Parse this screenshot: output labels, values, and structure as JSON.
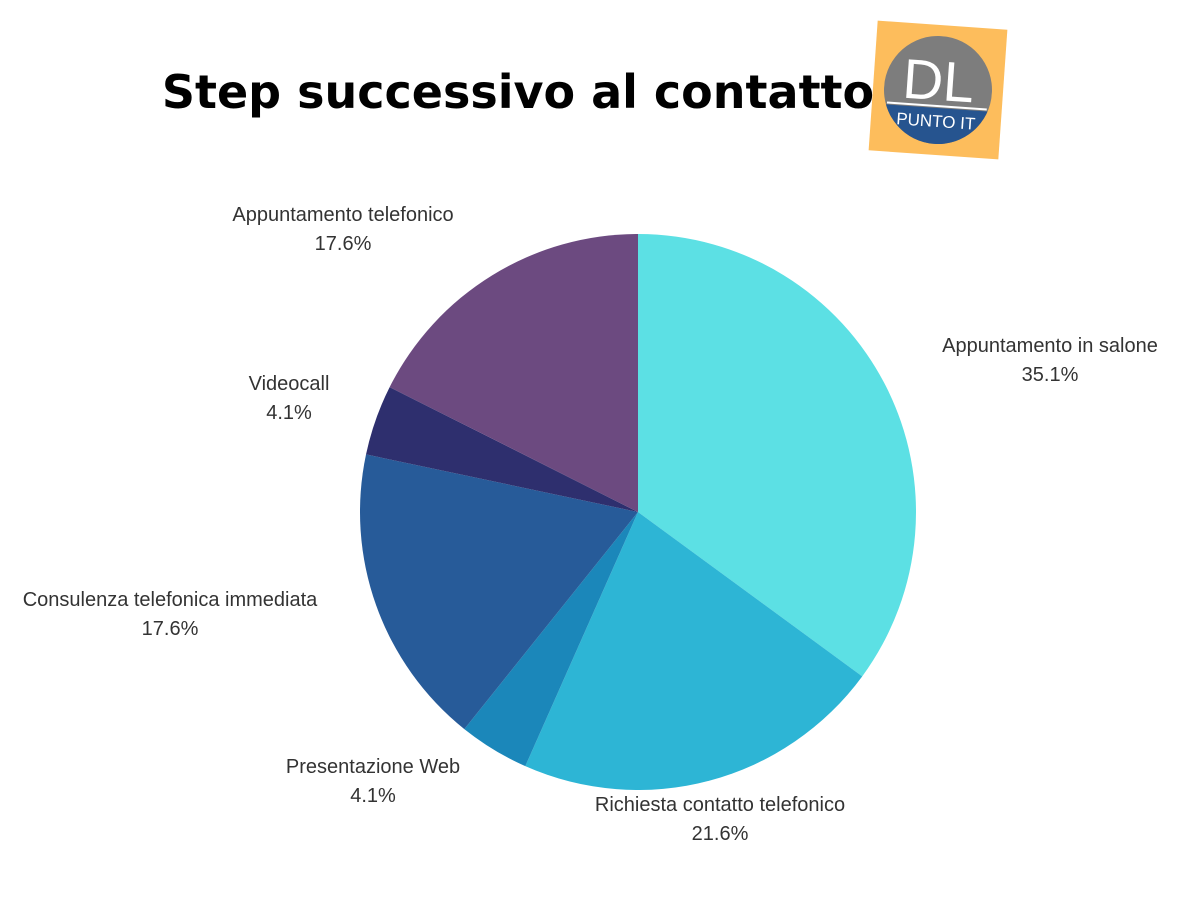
{
  "chart_data": {
    "type": "pie",
    "title": "Step successivo al contatto",
    "categories": [
      "Appuntamento in salone",
      "Richiesta contatto telefonico",
      "Presentazione Web",
      "Consulenza telefonica immediata",
      "Videocall",
      "Appuntamento telefonico"
    ],
    "values": [
      35.1,
      21.6,
      4.1,
      17.6,
      4.1,
      17.6
    ],
    "value_labels": [
      "35.1%",
      "21.6%",
      "4.1%",
      "17.6%",
      "4.1%",
      "17.6%"
    ],
    "colors": [
      "#5ce0e4",
      "#2db5d5",
      "#1b87ba",
      "#275b99",
      "#2e2f6e",
      "#6c4a80"
    ]
  },
  "logo": {
    "title": "DL",
    "subtitle": "PUNTO IT"
  }
}
